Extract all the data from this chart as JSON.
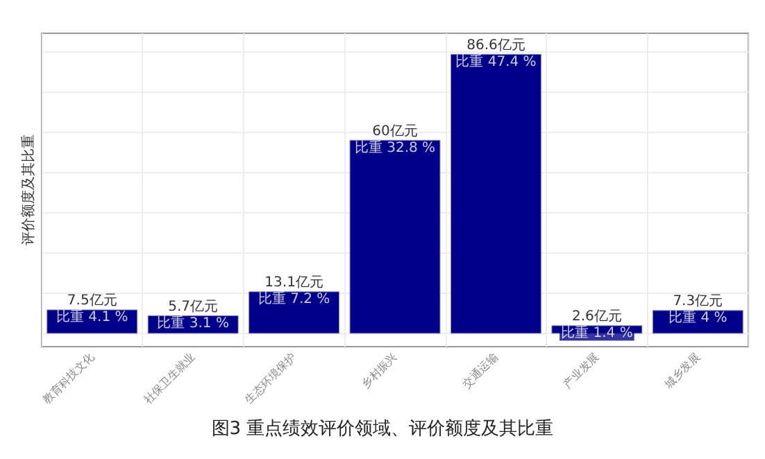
{
  "chart_data": {
    "type": "bar",
    "title": "图3 重点绩效评价领域、评价额度及其比重",
    "ylabel": "评价额度及其比重",
    "categories": [
      "教育科技文化",
      "社保卫生就业",
      "生态环境保护",
      "乡村振兴",
      "交通运输",
      "产业发展",
      "城乡发展"
    ],
    "values": [
      7.5,
      5.7,
      13.1,
      60,
      86.6,
      2.6,
      7.3
    ],
    "value_labels": [
      "7.5亿元",
      "5.7亿元",
      "13.1亿元",
      "60亿元",
      "86.6亿元",
      "2.6亿元",
      "7.3亿元"
    ],
    "annotations": [
      {
        "text": "比重 4.1 %",
        "x": "教育科技文化",
        "y": 7.5
      },
      {
        "text": "比重 3.1 %",
        "x": "社保卫生就业",
        "y": 5.7
      },
      {
        "text": "比重 7.2 %",
        "x": "生态环境保护",
        "y": 13.1
      },
      {
        "text": "比重 32.8 %",
        "x": "乡村振兴",
        "y": 60
      },
      {
        "text": "比重 47.4 %",
        "x": "交通运输",
        "y": 86.6
      },
      {
        "text": "比重 1.4 %",
        "x": "产业发展",
        "y": 2.6
      },
      {
        "text": "比重 4 %",
        "x": "城乡发展",
        "y": 7.3
      }
    ],
    "color": "#00008b",
    "ylim": [
      -4,
      93
    ],
    "yticks": [
      {
        "value": 0,
        "label": null
      },
      {
        "value": 12.5,
        "label": null
      },
      {
        "value": 25,
        "label": null
      },
      {
        "value": 37.5,
        "label": null
      },
      {
        "value": 50,
        "label": null
      },
      {
        "value": 62.5,
        "label": null
      },
      {
        "value": 75,
        "label": null
      },
      {
        "value": 87.5,
        "label": null
      }
    ],
    "grid": true,
    "tick_labels": "x"
  }
}
